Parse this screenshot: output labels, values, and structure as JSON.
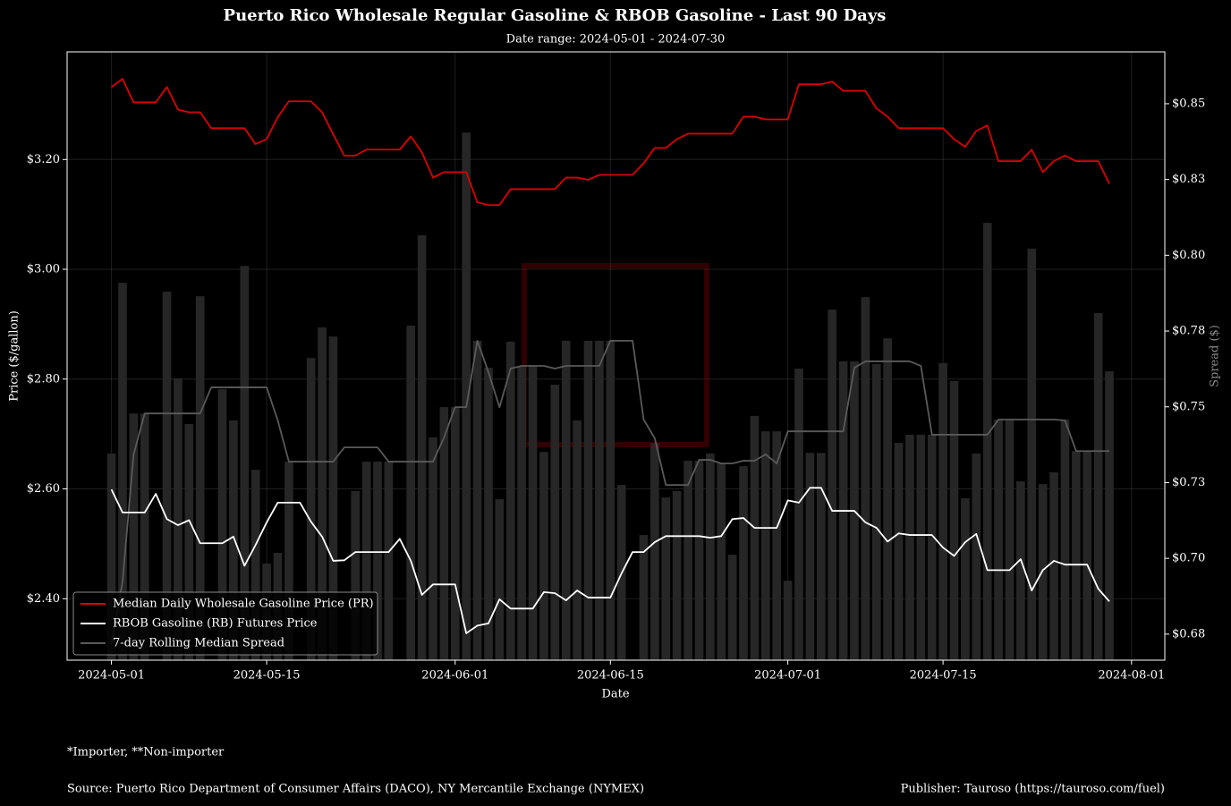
{
  "chart_data": {
    "type": "line",
    "title": "Puerto Rico Wholesale Regular Gasoline & RBOB Gasoline - Last 90 Days",
    "subtitle": "Date range: 2024-05-01 - 2024-07-30",
    "x_label": "Date",
    "y_label": "Price ($/gallon)",
    "y2_label": "Spread ($)",
    "footnote": "*Importer, **Non-importer",
    "source": "Source: Puerto Rico Department of Consumer Affairs (DACO), NY Mercantile Exchange (NYMEX)",
    "publisher": "Publisher: Tauroso (https://tauroso.com/fuel)",
    "grid": true,
    "legend_position": "lower left",
    "xlim": [
      "2024-04-27",
      "2024-08-04"
    ],
    "xticks": [
      "2024-05-01",
      "2024-05-15",
      "2024-06-01",
      "2024-06-15",
      "2024-07-01",
      "2024-07-15",
      "2024-08-01"
    ],
    "ylim": [
      2.288,
      3.396
    ],
    "yticks": [
      {
        "value": 2.4,
        "label": "$2.40"
      },
      {
        "value": 2.6,
        "label": "$2.60"
      },
      {
        "value": 2.8,
        "label": "$2.80"
      },
      {
        "value": 3.0,
        "label": "$3.00"
      },
      {
        "value": 3.2,
        "label": "$3.20"
      }
    ],
    "y2lim": [
      0.6664,
      0.8671
    ],
    "y2ticks": [
      {
        "value": 0.675,
        "label": "$0.68"
      },
      {
        "value": 0.7,
        "label": "$0.70"
      },
      {
        "value": 0.725,
        "label": "$0.73"
      },
      {
        "value": 0.75,
        "label": "$0.75"
      },
      {
        "value": 0.775,
        "label": "$0.78"
      },
      {
        "value": 0.8,
        "label": "$0.80"
      },
      {
        "value": 0.825,
        "label": "$0.83"
      },
      {
        "value": 0.85,
        "label": "$0.85"
      }
    ],
    "x": [
      "2024-05-01",
      "2024-05-02",
      "2024-05-03",
      "2024-05-04",
      "2024-05-05",
      "2024-05-06",
      "2024-05-07",
      "2024-05-08",
      "2024-05-09",
      "2024-05-10",
      "2024-05-11",
      "2024-05-12",
      "2024-05-13",
      "2024-05-14",
      "2024-05-15",
      "2024-05-16",
      "2024-05-17",
      "2024-05-18",
      "2024-05-19",
      "2024-05-20",
      "2024-05-21",
      "2024-05-22",
      "2024-05-23",
      "2024-05-24",
      "2024-05-25",
      "2024-05-26",
      "2024-05-27",
      "2024-05-28",
      "2024-05-29",
      "2024-05-30",
      "2024-05-31",
      "2024-06-01",
      "2024-06-02",
      "2024-06-03",
      "2024-06-04",
      "2024-06-05",
      "2024-06-06",
      "2024-06-07",
      "2024-06-08",
      "2024-06-09",
      "2024-06-10",
      "2024-06-11",
      "2024-06-12",
      "2024-06-13",
      "2024-06-14",
      "2024-06-15",
      "2024-06-16",
      "2024-06-17",
      "2024-06-18",
      "2024-06-19",
      "2024-06-20",
      "2024-06-21",
      "2024-06-22",
      "2024-06-23",
      "2024-06-24",
      "2024-06-25",
      "2024-06-26",
      "2024-06-27",
      "2024-06-28",
      "2024-06-29",
      "2024-06-30",
      "2024-07-01",
      "2024-07-02",
      "2024-07-03",
      "2024-07-04",
      "2024-07-05",
      "2024-07-06",
      "2024-07-07",
      "2024-07-08",
      "2024-07-09",
      "2024-07-10",
      "2024-07-11",
      "2024-07-12",
      "2024-07-13",
      "2024-07-14",
      "2024-07-15",
      "2024-07-16",
      "2024-07-17",
      "2024-07-18",
      "2024-07-19",
      "2024-07-20",
      "2024-07-21",
      "2024-07-22",
      "2024-07-23",
      "2024-07-24",
      "2024-07-25",
      "2024-07-26",
      "2024-07-27",
      "2024-07-28",
      "2024-07-29",
      "2024-07-30"
    ],
    "bars": {
      "color": "#262626",
      "axis": "y2",
      "values": [
        0.7346,
        0.7909,
        0.7478,
        0.7478,
        null,
        0.788,
        0.7594,
        0.7443,
        0.7865,
        null,
        0.7558,
        0.7455,
        0.7965,
        0.7292,
        0.6983,
        0.7018,
        0.7319,
        null,
        0.7661,
        0.7762,
        0.7732,
        null,
        0.7222,
        0.7319,
        0.7319,
        0.7319,
        null,
        0.7768,
        0.8066,
        0.7399,
        0.7499,
        0.7499,
        0.8405,
        0.7718,
        0.7629,
        0.7195,
        0.7715,
        0.7635,
        0.7635,
        0.7351,
        0.7573,
        0.7718,
        0.7455,
        0.7718,
        0.7718,
        0.7718,
        0.7242,
        null,
        0.7077,
        0.7381,
        0.7201,
        0.7222,
        0.7322,
        0.7322,
        0.7346,
        0.7313,
        0.7012,
        0.7304,
        0.747,
        0.7419,
        0.7419,
        0.6926,
        0.7626,
        0.7348,
        0.7348,
        0.7821,
        0.765,
        0.765,
        0.7862,
        0.7641,
        0.7726,
        0.7381,
        0.7408,
        0.7408,
        0.7408,
        0.7644,
        0.7585,
        0.7198,
        0.7346,
        0.8107,
        0.7458,
        0.7458,
        0.7254,
        0.8022,
        0.7245,
        0.7284,
        0.7458,
        0.7354,
        0.7354,
        0.7809,
        0.7617
      ]
    },
    "series": [
      {
        "name": "Median Daily Wholesale Gasoline Price (PR)",
        "color": "#e00000",
        "values": [
          3.332,
          3.347,
          3.304,
          3.304,
          3.304,
          3.332,
          3.291,
          3.286,
          3.286,
          3.257,
          3.257,
          3.257,
          3.257,
          3.228,
          3.237,
          3.277,
          3.306,
          3.306,
          3.306,
          3.286,
          3.246,
          3.207,
          3.207,
          3.218,
          3.218,
          3.218,
          3.218,
          3.242,
          3.213,
          3.167,
          3.177,
          3.177,
          3.177,
          3.122,
          3.117,
          3.117,
          3.146,
          3.146,
          3.146,
          3.146,
          3.146,
          3.167,
          3.167,
          3.163,
          3.172,
          3.172,
          3.172,
          3.172,
          3.193,
          3.221,
          3.221,
          3.237,
          3.247,
          3.247,
          3.247,
          3.247,
          3.247,
          3.278,
          3.278,
          3.273,
          3.273,
          3.273,
          3.337,
          3.337,
          3.337,
          3.342,
          3.325,
          3.325,
          3.325,
          3.293,
          3.278,
          3.257,
          3.257,
          3.257,
          3.257,
          3.257,
          3.237,
          3.223,
          3.252,
          3.262,
          3.197,
          3.197,
          3.197,
          3.218,
          3.177,
          3.197,
          3.207,
          3.197,
          3.197,
          3.197,
          3.156
        ]
      },
      {
        "name": "RBOB Gasoline (RB) Futures Price",
        "color": "#ffffff",
        "values": [
          2.599,
          2.557,
          2.557,
          2.557,
          2.591,
          2.545,
          2.534,
          2.543,
          2.501,
          2.501,
          2.501,
          2.513,
          2.46,
          2.498,
          2.539,
          2.575,
          2.575,
          2.575,
          2.54,
          2.513,
          2.469,
          2.47,
          2.485,
          2.485,
          2.485,
          2.485,
          2.509,
          2.469,
          2.407,
          2.426,
          2.426,
          2.426,
          2.337,
          2.351,
          2.355,
          2.399,
          2.382,
          2.382,
          2.382,
          2.412,
          2.41,
          2.397,
          2.415,
          2.402,
          2.402,
          2.402,
          2.446,
          2.485,
          2.485,
          2.503,
          2.514,
          2.514,
          2.514,
          2.514,
          2.511,
          2.514,
          2.545,
          2.547,
          2.529,
          2.529,
          2.529,
          2.579,
          2.575,
          2.602,
          2.602,
          2.56,
          2.56,
          2.56,
          2.539,
          2.529,
          2.504,
          2.519,
          2.516,
          2.516,
          2.516,
          2.493,
          2.478,
          2.503,
          2.518,
          2.452,
          2.452,
          2.452,
          2.472,
          2.415,
          2.452,
          2.469,
          2.462,
          2.462,
          2.462,
          2.418,
          2.395
        ]
      },
      {
        "name": "7-day Rolling Median Spread",
        "color": "#5a5a5a",
        "axis": "y2",
        "values": [
          0.6717,
          0.6923,
          0.7343,
          0.7478,
          0.7478,
          0.7478,
          0.7478,
          0.7478,
          0.7478,
          0.7564,
          0.7564,
          0.7564,
          0.7564,
          0.7564,
          0.7564,
          0.7455,
          0.7319,
          0.7319,
          0.7319,
          0.7319,
          0.7319,
          0.7366,
          0.7366,
          0.7366,
          0.7366,
          0.7319,
          0.7319,
          0.7319,
          0.7319,
          0.7319,
          0.7399,
          0.7499,
          0.7499,
          0.7718,
          0.7614,
          0.7499,
          0.7626,
          0.7635,
          0.7635,
          0.7635,
          0.7626,
          0.7635,
          0.7635,
          0.7635,
          0.7635,
          0.7718,
          0.7718,
          0.7718,
          0.7458,
          0.7396,
          0.7242,
          0.7242,
          0.7242,
          0.7325,
          0.7325,
          0.7313,
          0.7313,
          0.7322,
          0.7322,
          0.7343,
          0.7313,
          0.7419,
          0.7419,
          0.7419,
          0.7419,
          0.7419,
          0.7419,
          0.7629,
          0.765,
          0.765,
          0.765,
          0.765,
          0.765,
          0.7635,
          0.7408,
          0.7408,
          0.7408,
          0.7408,
          0.7408,
          0.7408,
          0.7458,
          0.7458,
          0.7458,
          0.7458,
          0.7458,
          0.7458,
          0.7455,
          0.7354,
          0.7354,
          0.7354,
          0.7354
        ]
      }
    ]
  }
}
